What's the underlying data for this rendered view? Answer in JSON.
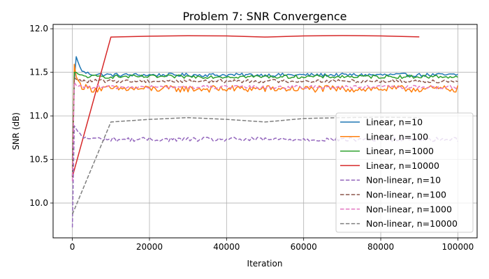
{
  "chart_data": {
    "type": "line",
    "title": "Problem 7: SNR Convergence",
    "xlabel": "Iteration",
    "ylabel": "SNR (dB)",
    "xlim": [
      -5000,
      105000
    ],
    "ylim": [
      9.6,
      12.05
    ],
    "xticks": [
      0,
      20000,
      40000,
      60000,
      80000,
      100000
    ],
    "xtick_labels": [
      "0",
      "20000",
      "40000",
      "60000",
      "80000",
      "100000"
    ],
    "yticks": [
      10.0,
      10.5,
      11.0,
      11.5,
      12.0
    ],
    "ytick_labels": [
      "10.0",
      "10.5",
      "11.0",
      "11.5",
      "12.0"
    ],
    "grid": true,
    "legend_position": "right",
    "series": [
      {
        "name": "Linear, n=10",
        "color": "#1f77b4",
        "dash": "solid",
        "x": [
          0,
          300,
          1000,
          2000,
          3000,
          5000,
          10000,
          100000
        ],
        "y": [
          10.5,
          11.3,
          11.68,
          11.55,
          11.5,
          11.48,
          11.47,
          11.47
        ],
        "noise_amp": 0.02
      },
      {
        "name": "Linear, n=100",
        "color": "#ff7f0e",
        "dash": "solid",
        "x": [
          0,
          300,
          1000,
          2000,
          3000,
          5000,
          10000,
          100000
        ],
        "y": [
          10.4,
          11.65,
          11.45,
          11.36,
          11.33,
          11.31,
          11.31,
          11.31
        ],
        "noise_amp": 0.04
      },
      {
        "name": "Linear, n=1000",
        "color": "#2ca02c",
        "dash": "solid",
        "x": [
          0,
          300,
          1000,
          2000,
          5000,
          10000,
          100000
        ],
        "y": [
          10.3,
          11.5,
          11.5,
          11.46,
          11.45,
          11.45,
          11.45
        ],
        "noise_amp": 0.02
      },
      {
        "name": "Linear, n=10000",
        "color": "#d62728",
        "dash": "solid",
        "x": [
          0,
          10000,
          20000,
          30000,
          40000,
          50000,
          60000,
          70000,
          80000,
          90000
        ],
        "y": [
          10.3,
          11.905,
          11.915,
          11.92,
          11.918,
          11.905,
          11.918,
          11.922,
          11.918,
          11.907
        ],
        "noise_amp": 0
      },
      {
        "name": "Non-linear, n=10",
        "color": "#9467bd",
        "dash": "dashed",
        "x": [
          0,
          300,
          1000,
          2000,
          3000,
          5000,
          10000,
          100000
        ],
        "y": [
          9.72,
          10.9,
          10.85,
          10.78,
          10.75,
          10.74,
          10.73,
          10.73
        ],
        "noise_amp": 0.025
      },
      {
        "name": "Non-linear, n=100",
        "color": "#8c564b",
        "dash": "dashed",
        "x": [
          0,
          300,
          1000,
          2000,
          5000,
          10000,
          100000
        ],
        "y": [
          10.3,
          11.45,
          11.42,
          11.4,
          11.4,
          11.4,
          11.4
        ],
        "noise_amp": 0.02
      },
      {
        "name": "Non-linear, n=1000",
        "color": "#e377c2",
        "dash": "dashed",
        "x": [
          0,
          300,
          1000,
          2000,
          5000,
          10000,
          100000
        ],
        "y": [
          10.25,
          11.4,
          11.35,
          11.33,
          11.33,
          11.33,
          11.33
        ],
        "noise_amp": 0.02
      },
      {
        "name": "Non-linear, n=10000",
        "color": "#7f7f7f",
        "dash": "dashed",
        "x": [
          0,
          10000,
          20000,
          30000,
          40000,
          50000,
          60000,
          70000,
          80000,
          90000
        ],
        "y": [
          9.87,
          10.93,
          10.96,
          10.98,
          10.96,
          10.93,
          10.97,
          10.98,
          10.985,
          10.98
        ],
        "noise_amp": 0
      }
    ]
  }
}
